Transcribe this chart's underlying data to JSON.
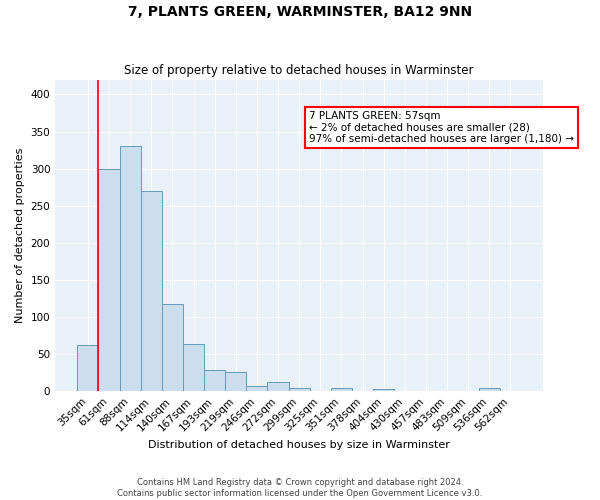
{
  "title": "7, PLANTS GREEN, WARMINSTER, BA12 9NN",
  "subtitle": "Size of property relative to detached houses in Warminster",
  "xlabel": "Distribution of detached houses by size in Warminster",
  "ylabel": "Number of detached properties",
  "footnote": "Contains HM Land Registry data © Crown copyright and database right 2024.\nContains public sector information licensed under the Open Government Licence v3.0.",
  "bin_labels": [
    "35sqm",
    "61sqm",
    "88sqm",
    "114sqm",
    "140sqm",
    "167sqm",
    "193sqm",
    "219sqm",
    "246sqm",
    "272sqm",
    "299sqm",
    "325sqm",
    "351sqm",
    "378sqm",
    "404sqm",
    "430sqm",
    "457sqm",
    "483sqm",
    "509sqm",
    "536sqm",
    "562sqm"
  ],
  "bar_heights": [
    62,
    300,
    330,
    270,
    118,
    64,
    29,
    26,
    7,
    12,
    5,
    0,
    4,
    0,
    3,
    0,
    0,
    0,
    0,
    4,
    0
  ],
  "bar_color": "#ccdded",
  "bar_edge_color": "#6699bb",
  "annotation_text": "7 PLANTS GREEN: 57sqm\n← 2% of detached houses are smaller (28)\n97% of semi-detached houses are larger (1,180) →",
  "annotation_box_color": "white",
  "annotation_box_edge": "red",
  "red_line_bin": 0.5,
  "ylim": [
    0,
    420
  ],
  "yticks": [
    0,
    50,
    100,
    150,
    200,
    250,
    300,
    350,
    400
  ],
  "background_color": "#e8f0f8",
  "grid_color": "white",
  "title_fontsize": 10,
  "subtitle_fontsize": 8.5,
  "ylabel_fontsize": 8,
  "xlabel_fontsize": 8,
  "tick_fontsize": 7.5,
  "annotation_fontsize": 7.5,
  "footnote_fontsize": 6
}
